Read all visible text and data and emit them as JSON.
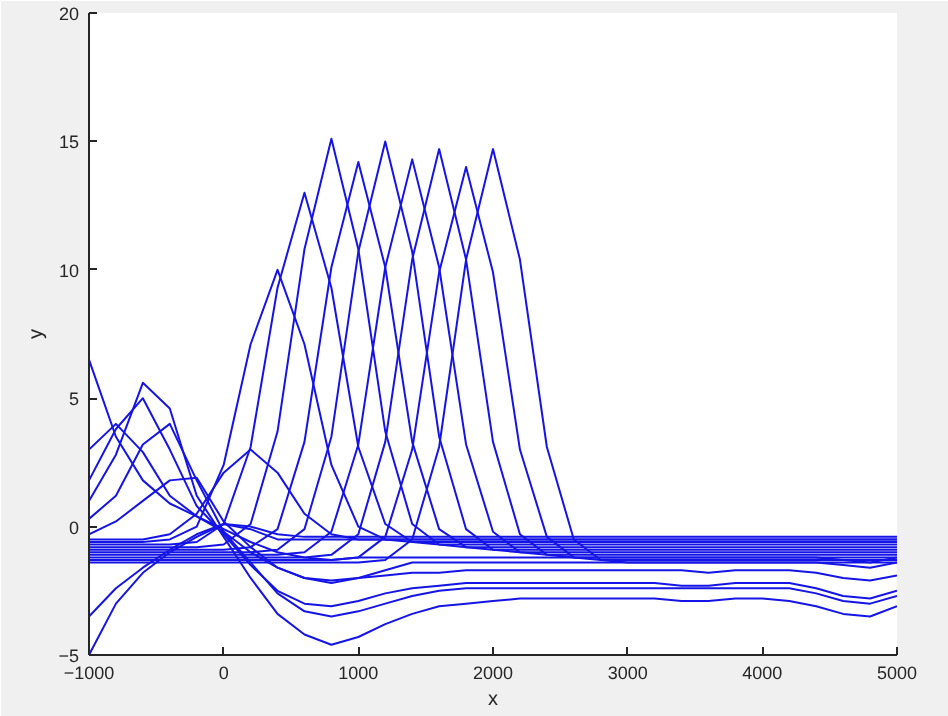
{
  "chart_data": {
    "type": "line",
    "xlabel": "x",
    "ylabel": "y",
    "xlim": [
      -1000,
      5000
    ],
    "ylim": [
      -5,
      20
    ],
    "xticks": [
      -1000,
      0,
      1000,
      2000,
      3000,
      4000,
      5000
    ],
    "yticks": [
      -5,
      0,
      5,
      10,
      15,
      20
    ],
    "grid": false,
    "marker": "none",
    "line_style": "solid",
    "x": [
      -1000,
      -800,
      -600,
      -400,
      -200,
      0,
      200,
      400,
      600,
      800,
      1000,
      1200,
      1400,
      1600,
      1800,
      2000,
      2200,
      2400,
      2600,
      2800,
      3000,
      3200,
      3400,
      3600,
      3800,
      4000,
      4200,
      4400,
      4600,
      4800,
      5000
    ],
    "series": [
      {
        "color": "#1414e6",
        "values": [
          -0.5,
          -0.5,
          -0.5,
          -0.3,
          0.5,
          2.1,
          3.0,
          2.1,
          0.5,
          -0.3,
          -0.5,
          -0.5,
          -0.5,
          -0.5,
          -0.5,
          -0.5,
          -0.5,
          -0.5,
          -0.5,
          -0.5,
          -0.5,
          -0.5,
          -0.5,
          -0.5,
          -0.5,
          -0.5,
          -0.5,
          -0.5,
          -0.5,
          -0.5,
          -0.5
        ]
      },
      {
        "color": "#1414e6",
        "values": [
          -0.6,
          -0.6,
          -0.6,
          -0.5,
          0.0,
          2.4,
          7.1,
          10,
          7.1,
          2.4,
          0.0,
          -0.5,
          -0.6,
          -0.6,
          -0.6,
          -0.6,
          -0.6,
          -0.6,
          -0.6,
          -0.6,
          -0.6,
          -0.6,
          -0.6,
          -0.6,
          -0.6,
          -0.6,
          -0.6,
          -0.6,
          -0.6,
          -0.6,
          -0.6
        ]
      },
      {
        "color": "#1414e6",
        "values": [
          -0.7,
          -0.7,
          -0.7,
          -0.7,
          -0.6,
          0.1,
          3.1,
          9.3,
          13,
          9.3,
          3.1,
          0.1,
          -0.6,
          -0.7,
          -0.7,
          -0.7,
          -0.7,
          -0.7,
          -0.7,
          -0.7,
          -0.7,
          -0.7,
          -0.7,
          -0.7,
          -0.7,
          -0.7,
          -0.7,
          -0.7,
          -0.7,
          -0.7,
          -0.7
        ]
      },
      {
        "color": "#1414e6",
        "values": [
          -0.8,
          -0.8,
          -0.8,
          -0.8,
          -0.8,
          -0.7,
          0.1,
          3.7,
          10.8,
          15.1,
          10.8,
          3.7,
          0.1,
          -0.7,
          -0.8,
          -0.8,
          -0.8,
          -0.8,
          -0.8,
          -0.8,
          -0.8,
          -0.8,
          -0.8,
          -0.8,
          -0.8,
          -0.8,
          -0.8,
          -0.8,
          -0.8,
          -0.8,
          -0.8
        ]
      },
      {
        "color": "#1414e6",
        "values": [
          -0.9,
          -0.9,
          -0.9,
          -0.9,
          -0.9,
          -0.9,
          -0.8,
          -0.1,
          3.3,
          10.1,
          14.2,
          10.1,
          3.3,
          -0.1,
          -0.8,
          -0.9,
          -0.9,
          -0.9,
          -0.9,
          -0.9,
          -0.9,
          -0.9,
          -0.9,
          -0.9,
          -0.9,
          -0.9,
          -0.9,
          -0.9,
          -0.9,
          -0.9,
          -0.9
        ]
      },
      {
        "color": "#1414e6",
        "values": [
          -1.0,
          -1.0,
          -1.0,
          -1.0,
          -1.0,
          -1.0,
          -1.0,
          -0.9,
          -0.1,
          3.5,
          10.7,
          15,
          10.7,
          3.5,
          -0.1,
          -0.9,
          -1.0,
          -1.0,
          -1.0,
          -1.0,
          -1.0,
          -1.0,
          -1.0,
          -1.0,
          -1.0,
          -1.0,
          -1.0,
          -1.0,
          -1.0,
          -1.0,
          -1.0
        ]
      },
      {
        "color": "#1414e6",
        "values": [
          -1.1,
          -1.1,
          -1.1,
          -1.1,
          -1.1,
          -1.1,
          -1.1,
          -1.1,
          -1.0,
          -0.2,
          3.2,
          10.1,
          14.3,
          10.1,
          3.2,
          -0.2,
          -1.0,
          -1.1,
          -1.1,
          -1.1,
          -1.1,
          -1.1,
          -1.1,
          -1.1,
          -1.1,
          -1.1,
          -1.1,
          -1.1,
          -1.1,
          -1.1,
          -1.1
        ]
      },
      {
        "color": "#1414e6",
        "values": [
          -1.2,
          -1.2,
          -1.2,
          -1.2,
          -1.2,
          -1.2,
          -1.2,
          -1.2,
          -1.2,
          -1.1,
          -0.3,
          3.3,
          10.4,
          14.7,
          10.4,
          3.3,
          -0.3,
          -1.1,
          -1.2,
          -1.2,
          -1.2,
          -1.2,
          -1.2,
          -1.2,
          -1.2,
          -1.2,
          -1.2,
          -1.2,
          -1.2,
          -1.2,
          -1.2
        ]
      },
      {
        "color": "#1414e6",
        "values": [
          -1.3,
          -1.3,
          -1.3,
          -1.3,
          -1.3,
          -1.3,
          -1.3,
          -1.3,
          -1.3,
          -1.3,
          -1.2,
          -0.4,
          3.0,
          9.9,
          14,
          9.9,
          3.0,
          -0.4,
          -1.2,
          -1.3,
          -1.3,
          -1.3,
          -1.3,
          -1.3,
          -1.3,
          -1.3,
          -1.3,
          -1.3,
          -1.3,
          -1.3,
          -1.3
        ]
      },
      {
        "color": "#1414e6",
        "values": [
          -1.4,
          -1.4,
          -1.4,
          -1.4,
          -1.4,
          -1.4,
          -1.4,
          -1.4,
          -1.4,
          -1.4,
          -1.4,
          -1.3,
          -0.5,
          3.1,
          10.4,
          14.7,
          10.4,
          3.1,
          -0.5,
          -1.3,
          -1.4,
          -1.4,
          -1.4,
          -1.4,
          -1.4,
          -1.4,
          -1.4,
          -1.4,
          -1.4,
          -1.4,
          -1.4
        ]
      },
      {
        "color": "#1414e6",
        "values": [
          3.0,
          4.0,
          2.9,
          1.2,
          0.4,
          -0.2,
          -1.0,
          -1.6,
          -2.0,
          -2.1,
          -2.0,
          -1.9,
          -1.8,
          -1.8,
          -1.7,
          -1.7,
          -1.7,
          -1.7,
          -1.7,
          -1.7,
          -1.7,
          -1.7,
          -1.7,
          -1.8,
          -1.7,
          -1.7,
          -1.7,
          -1.8,
          -2.0,
          -2.1,
          -1.9
        ]
      },
      {
        "color": "#1414e6",
        "values": [
          1.8,
          3.8,
          5.0,
          3.0,
          0.8,
          -0.3,
          -1.5,
          -2.5,
          -3.0,
          -3.1,
          -2.9,
          -2.6,
          -2.4,
          -2.3,
          -2.2,
          -2.2,
          -2.2,
          -2.2,
          -2.2,
          -2.2,
          -2.2,
          -2.2,
          -2.3,
          -2.3,
          -2.2,
          -2.2,
          -2.2,
          -2.4,
          -2.7,
          -2.8,
          -2.5
        ]
      },
      {
        "color": "#1414e6",
        "values": [
          1.0,
          2.8,
          5.6,
          4.6,
          1.2,
          -0.4,
          -2.0,
          -3.4,
          -4.2,
          -4.6,
          -4.3,
          -3.8,
          -3.4,
          -3.1,
          -3.0,
          -2.9,
          -2.8,
          -2.8,
          -2.8,
          -2.8,
          -2.8,
          -2.8,
          -2.9,
          -2.9,
          -2.8,
          -2.8,
          -2.9,
          -3.1,
          -3.4,
          -3.5,
          -3.1
        ]
      },
      {
        "color": "#1414e6",
        "values": [
          0.3,
          1.2,
          3.2,
          4.0,
          1.8,
          -0.2,
          -1.4,
          -2.6,
          -3.3,
          -3.5,
          -3.3,
          -3.0,
          -2.7,
          -2.5,
          -2.4,
          -2.4,
          -2.4,
          -2.4,
          -2.4,
          -2.4,
          -2.4,
          -2.4,
          -2.4,
          -2.4,
          -2.4,
          -2.4,
          -2.4,
          -2.6,
          -2.9,
          -3.0,
          -2.7
        ]
      },
      {
        "color": "#1414e6",
        "values": [
          -0.3,
          0.2,
          1.0,
          1.8,
          1.9,
          0.2,
          -0.8,
          -1.6,
          -2.0,
          -2.2,
          -2.0,
          -1.7,
          -1.4,
          -1.4,
          -1.4,
          -1.4,
          -1.4,
          -1.4,
          -1.4,
          -1.4,
          -1.4,
          -1.4,
          -1.4,
          -1.4,
          -1.4,
          -1.4,
          -1.4,
          -1.4,
          -1.5,
          -1.6,
          -1.4
        ]
      },
      {
        "color": "#1414e6",
        "values": [
          6.5,
          3.5,
          1.8,
          0.9,
          0.4,
          -0.1,
          -0.6,
          -1.0,
          -1.2,
          -1.3,
          -1.2,
          -1.2,
          -1.2,
          -1.2,
          -1.2,
          -1.2,
          -1.2,
          -1.2,
          -1.2,
          -1.2,
          -1.2,
          -1.2,
          -1.2,
          -1.2,
          -1.2,
          -1.2,
          -1.2,
          -1.2,
          -1.3,
          -1.4,
          -1.2
        ]
      },
      {
        "color": "#1414e6",
        "values": [
          -5.0,
          -3.0,
          -1.8,
          -1.0,
          -0.4,
          0.1,
          0.0,
          -0.3,
          -0.4,
          -0.4,
          -0.4,
          -0.4,
          -0.4,
          -0.4,
          -0.4,
          -0.4,
          -0.4,
          -0.4,
          -0.4,
          -0.4,
          -0.4,
          -0.4,
          -0.4,
          -0.4,
          -0.4,
          -0.4,
          -0.4,
          -0.4,
          -0.4,
          -0.4,
          -0.4
        ]
      },
      {
        "color": "#1414e6",
        "values": [
          -3.5,
          -2.4,
          -1.6,
          -0.9,
          -0.3,
          0.1,
          -0.1,
          -0.5,
          -0.5,
          -0.5,
          -0.5,
          -0.5,
          -0.5,
          -0.5,
          -0.5,
          -0.5,
          -0.5,
          -0.5,
          -0.5,
          -0.5,
          -0.5,
          -0.5,
          -0.5,
          -0.5,
          -0.5,
          -0.5,
          -0.5,
          -0.5,
          -0.5,
          -0.5,
          -0.5
        ]
      }
    ]
  }
}
